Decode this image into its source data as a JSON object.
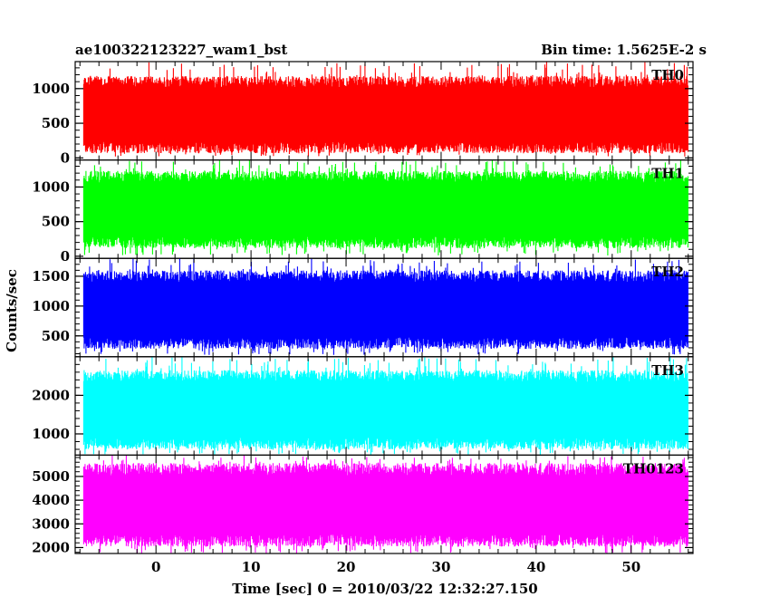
{
  "header": {
    "title": "ae100322123227_wam1_bst",
    "bin_time": "Bin time: 1.5625E-2 s"
  },
  "chart_data": {
    "type": "line",
    "title": "ae100322123227_wam1_bst",
    "xlabel": "Time [sec] 0 = 2010/03/22 12:32:27.150",
    "ylabel": "Counts/sec",
    "xlim": [
      -8.5,
      56.5
    ],
    "x_ticks": [
      0,
      10,
      20,
      30,
      40,
      50
    ],
    "x_tick_labels": [
      "0",
      "10",
      "20",
      "30",
      "40",
      "50"
    ],
    "data_x_range": [
      -7.6,
      56
    ],
    "bin_time": 0.015625,
    "panels": [
      {
        "name": "TH0",
        "color": "#ff0000",
        "ylim": [
          -30,
          1390
        ],
        "ticks": [
          0,
          500,
          1000
        ],
        "tick_labels": [
          "0",
          "500",
          "1000"
        ],
        "typical_low": 150,
        "typical_high": 1100,
        "min": 20,
        "max": 1390
      },
      {
        "name": "TH1",
        "color": "#00ff00",
        "ylim": [
          -30,
          1390
        ],
        "ticks": [
          0,
          500,
          1000
        ],
        "tick_labels": [
          "0",
          "500",
          "1000"
        ],
        "typical_low": 200,
        "typical_high": 1150,
        "min": 10,
        "max": 1390
      },
      {
        "name": "TH2",
        "color": "#0000ff",
        "ylim": [
          150,
          1800
        ],
        "ticks": [
          500,
          1000,
          1500
        ],
        "tick_labels": [
          "500",
          "1000",
          "1500"
        ],
        "typical_low": 380,
        "typical_high": 1500,
        "min": 180,
        "max": 1800
      },
      {
        "name": "TH3",
        "color": "#00ffff",
        "ylim": [
          450,
          3000
        ],
        "ticks": [
          1000,
          2000
        ],
        "tick_labels": [
          "1000",
          "2000"
        ],
        "typical_low": 750,
        "typical_high": 2500,
        "min": 450,
        "max": 3000
      },
      {
        "name": "TH0123",
        "color": "#ff00ff",
        "ylim": [
          1750,
          5900
        ],
        "ticks": [
          2000,
          3000,
          4000,
          5000
        ],
        "tick_labels": [
          "2000",
          "3000",
          "4000",
          "5000"
        ],
        "typical_low": 2300,
        "typical_high": 5300,
        "min": 1750,
        "max": 5900
      }
    ]
  }
}
